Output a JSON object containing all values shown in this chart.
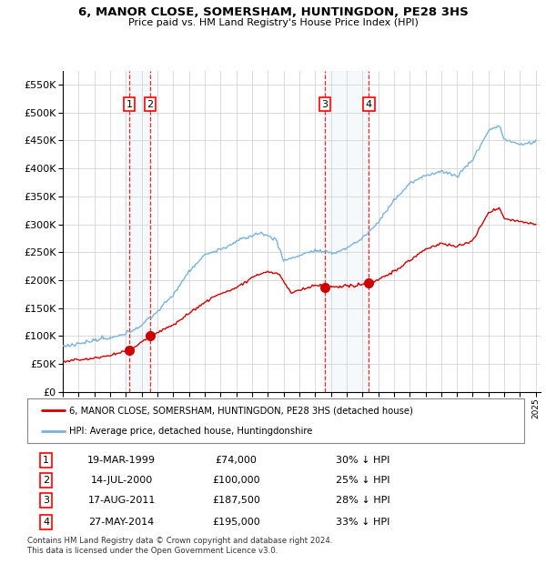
{
  "title": "6, MANOR CLOSE, SOMERSHAM, HUNTINGDON, PE28 3HS",
  "subtitle": "Price paid vs. HM Land Registry's House Price Index (HPI)",
  "ylim": [
    0,
    575000
  ],
  "yticks": [
    0,
    50000,
    100000,
    150000,
    200000,
    250000,
    300000,
    350000,
    400000,
    450000,
    500000,
    550000
  ],
  "xlim_start": 1995.0,
  "xlim_end": 2025.3,
  "hpi_color": "#7ab3d4",
  "price_color": "#cc0000",
  "transactions": [
    {
      "num": 1,
      "date_decimal": 1999.22,
      "price": 74000,
      "date_str": "19-MAR-1999",
      "pct": "30%"
    },
    {
      "num": 2,
      "date_decimal": 2000.54,
      "price": 100000,
      "date_str": "14-JUL-2000",
      "pct": "25%"
    },
    {
      "num": 3,
      "date_decimal": 2011.63,
      "price": 187500,
      "date_str": "17-AUG-2011",
      "pct": "28%"
    },
    {
      "num": 4,
      "date_decimal": 2014.41,
      "price": 195000,
      "date_str": "27-MAY-2014",
      "pct": "33%"
    }
  ],
  "footer": "Contains HM Land Registry data © Crown copyright and database right 2024.\nThis data is licensed under the Open Government Licence v3.0.",
  "legend_price_label": "6, MANOR CLOSE, SOMERSHAM, HUNTINGDON, PE28 3HS (detached house)",
  "legend_hpi_label": "HPI: Average price, detached house, Huntingdonshire"
}
